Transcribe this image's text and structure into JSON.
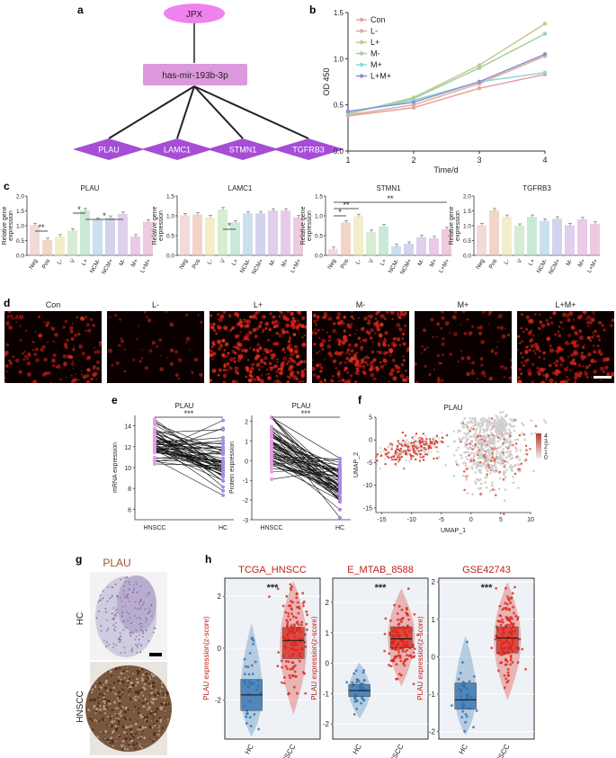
{
  "panels": {
    "a": {
      "label": "a",
      "top_node": "JPX",
      "mid_node": "has-mir-193b-3p",
      "targets": [
        "PLAU",
        "LAMC1",
        "STMN1",
        "TGFRB3"
      ]
    },
    "b": {
      "label": "b",
      "ylabel": "OD 450",
      "xlabel": "Time/d",
      "xticks": [
        "1",
        "2",
        "3",
        "4"
      ],
      "yticks": [
        "0.0",
        "0.5",
        "1.0",
        "1.5"
      ]
    },
    "c": {
      "label": "c",
      "ylabel": "Relative gene\nexpression",
      "categories": [
        "Neg",
        "Pos",
        "L-",
        "V",
        "L+",
        "NCM-",
        "NCM+",
        "M-",
        "M+",
        "L+M+"
      ]
    },
    "d": {
      "label": "d",
      "titles": [
        "Con",
        "L-",
        "L+",
        "M-",
        "M+",
        "L+M+"
      ],
      "marker": "PLAU"
    },
    "e": {
      "label": "e",
      "title": "PLAU",
      "xcats": [
        "HNSCC",
        "HC"
      ],
      "sig": "***"
    },
    "f": {
      "label": "f",
      "title": "PLAU",
      "xlabel": "UMAP_1",
      "ylabel": "UMAP_2",
      "xticks": [
        "-15",
        "-10",
        "-5",
        "0",
        "5",
        "10"
      ],
      "yticks": [
        "5",
        "0",
        "-5",
        "-10",
        "-15"
      ],
      "legend": [
        "4",
        "3",
        "2",
        "1",
        "0"
      ]
    },
    "g": {
      "label": "g",
      "title": "PLAU",
      "rows": [
        "HC",
        "HNSCC"
      ]
    },
    "h": {
      "label": "h",
      "ylabel": "PLAU expression(z-score)",
      "xcats": [
        "HC",
        "HNSCC"
      ],
      "sig": "***"
    }
  },
  "chart_data": [
    {
      "id": "b",
      "type": "line",
      "title": "",
      "xlabel": "Time/d",
      "ylabel": "OD 450",
      "x": [
        1,
        2,
        3,
        4
      ],
      "ylim": [
        0,
        1.5
      ],
      "series": [
        {
          "name": "Con",
          "color": "#e8a0a0",
          "values": [
            0.38,
            0.47,
            0.68,
            0.83
          ]
        },
        {
          "name": "L-",
          "color": "#d8b0a0",
          "values": [
            0.39,
            0.5,
            0.73,
            1.03
          ]
        },
        {
          "name": "L+",
          "color": "#c8c890",
          "values": [
            0.4,
            0.58,
            0.93,
            1.38
          ]
        },
        {
          "name": "M-",
          "color": "#a0d0a0",
          "values": [
            0.41,
            0.57,
            0.9,
            1.27
          ]
        },
        {
          "name": "M+",
          "color": "#90d8d8",
          "values": [
            0.42,
            0.55,
            0.75,
            0.85
          ]
        },
        {
          "name": "L+M+",
          "color": "#9090d0",
          "values": [
            0.43,
            0.53,
            0.75,
            1.05
          ]
        }
      ]
    },
    {
      "id": "c1",
      "type": "bar",
      "title": "PLAU",
      "ylim": [
        0,
        2.0
      ],
      "yticks": [
        "0.0",
        "0.5",
        "1.0",
        "1.5",
        "2.0"
      ],
      "categories": [
        "Neg",
        "Pos",
        "L-",
        "V",
        "L+",
        "NCM-",
        "NCM+",
        "M-",
        "M+",
        "L+M+"
      ],
      "values": [
        1.0,
        0.5,
        0.62,
        0.82,
        1.5,
        1.18,
        1.25,
        1.38,
        0.62,
        1.12
      ],
      "annotations": [
        "**",
        "*",
        "*"
      ]
    },
    {
      "id": "c2",
      "type": "bar",
      "title": "LAMC1",
      "ylim": [
        0,
        1.5
      ],
      "yticks": [
        "0.0",
        "0.5",
        "1.0",
        "1.5"
      ],
      "categories": [
        "Neg",
        "Pos",
        "L-",
        "V",
        "L+",
        "NCM-",
        "NCM+",
        "M-",
        "M+",
        "L+M+"
      ],
      "values": [
        1.0,
        1.02,
        0.95,
        1.15,
        0.82,
        1.05,
        1.05,
        1.12,
        1.12,
        0.95
      ],
      "annotations": [
        "*"
      ]
    },
    {
      "id": "c3",
      "type": "bar",
      "title": "STMN1",
      "ylim": [
        0,
        1.5
      ],
      "yticks": [
        "0.0",
        "0.5",
        "1.0",
        "1.5"
      ],
      "categories": [
        "Neg",
        "Pos",
        "L-",
        "V",
        "L+",
        "NCM-",
        "NCM+",
        "M-",
        "M+",
        "L+M+"
      ],
      "values": [
        0.15,
        0.82,
        0.98,
        0.58,
        0.72,
        0.22,
        0.28,
        0.45,
        0.42,
        0.65
      ],
      "annotations": [
        "*",
        "**",
        "**"
      ]
    },
    {
      "id": "c4",
      "type": "bar",
      "title": "TGFRB3",
      "ylim": [
        0,
        2.0
      ],
      "yticks": [
        "0.0",
        "0.5",
        "1.0",
        "1.5",
        "2.0"
      ],
      "categories": [
        "Neg",
        "Pos",
        "L-",
        "V",
        "L+",
        "NCM-",
        "NCM+",
        "M-",
        "M+",
        "L+M+"
      ],
      "values": [
        1.0,
        1.5,
        1.28,
        0.98,
        1.28,
        1.15,
        1.22,
        1.0,
        1.2,
        1.05
      ],
      "annotations": []
    },
    {
      "id": "e1",
      "type": "scatter",
      "title": "PLAU",
      "ylabel": "mRNA expression",
      "yticks": [
        "6",
        "8",
        "10",
        "12",
        "14"
      ],
      "ylim": [
        5,
        15
      ],
      "categories": [
        "HNSCC",
        "HC"
      ]
    },
    {
      "id": "e2",
      "type": "scatter",
      "title": "PLAU",
      "ylabel": "Protein expression",
      "yticks": [
        "-3",
        "-2",
        "-1",
        "0",
        "1",
        "2"
      ],
      "ylim": [
        -3,
        2.3
      ],
      "categories": [
        "HNSCC",
        "HC"
      ]
    },
    {
      "id": "h1",
      "type": "box",
      "title": "TCGA_HNSCC",
      "ylim": [
        -3.5,
        2.7
      ],
      "yticks": [
        "-2",
        "0",
        "2"
      ],
      "categories": [
        "HC",
        "HNSCC"
      ],
      "box": [
        {
          "q1": -2.4,
          "med": -1.8,
          "q3": -1.2
        },
        {
          "q1": -0.4,
          "med": 0.3,
          "q3": 0.8
        }
      ]
    },
    {
      "id": "h2",
      "type": "box",
      "title": "E_MTAB_8588",
      "ylim": [
        -2.5,
        2.8
      ],
      "yticks": [
        "-2",
        "-1",
        "0",
        "1",
        "2"
      ],
      "categories": [
        "HC",
        "HNSCC"
      ],
      "box": [
        {
          "q1": -1.1,
          "med": -0.9,
          "q3": -0.7
        },
        {
          "q1": 0.5,
          "med": 0.8,
          "q3": 1.2
        }
      ]
    },
    {
      "id": "h3",
      "type": "box",
      "title": "GSE42743",
      "ylim": [
        -2.2,
        2.1
      ],
      "yticks": [
        "-2",
        "-1",
        "0",
        "1",
        "2"
      ],
      "categories": [
        "HC",
        "HNSCC"
      ],
      "box": [
        {
          "q1": -1.4,
          "med": -1.15,
          "q3": -0.7
        },
        {
          "q1": 0.1,
          "med": 0.5,
          "q3": 0.8
        }
      ]
    }
  ]
}
